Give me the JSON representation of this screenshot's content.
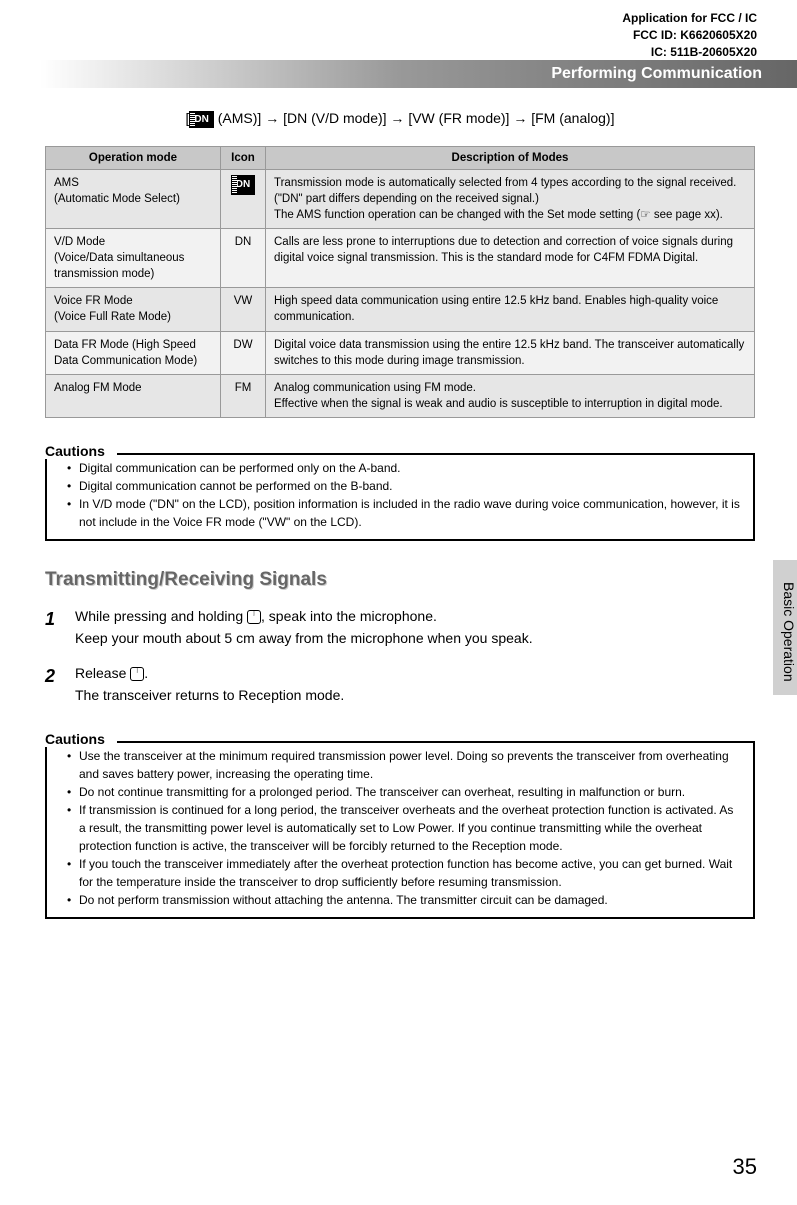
{
  "header": {
    "line1": "Application for FCC / IC",
    "line2": "FCC ID: K6620605X20",
    "line3": "IC: 511B-20605X20"
  },
  "section_title": "Performing Communication",
  "mode_chain": " (AMS)] → [DN (V/D mode)] → [VW (FR mode)] → [FM (analog)]",
  "mode_chain_prefix": "[",
  "dn_label": "DN",
  "table": {
    "headers": [
      "Operation mode",
      "Icon",
      "Description of Modes"
    ],
    "rows": [
      {
        "mode": "AMS\n(Automatic Mode Select)",
        "icon_type": "dn-box",
        "icon": "DN",
        "desc": "Transmission mode is automatically selected from 4 types according to the signal received.\n(\"DN\" part differs depending on the received signal.)\nThe AMS function operation can be changed with the Set mode setting (☞ see page xx)."
      },
      {
        "mode": "V/D Mode\n(Voice/Data simultaneous transmission mode)",
        "icon": "DN",
        "desc": "Calls are less prone to interruptions due to detection and correction of voice signals during digital voice signal transmission. This is the standard mode for C4FM FDMA Digital."
      },
      {
        "mode": "Voice FR Mode\n(Voice Full Rate Mode)",
        "icon": "VW",
        "desc": "High speed data communication using entire 12.5 kHz band. Enables high-quality voice communication."
      },
      {
        "mode": "Data FR Mode (High Speed Data Communication Mode)",
        "icon": "DW",
        "desc": "Digital voice data transmission using the entire 12.5 kHz band. The transceiver automatically switches to this mode during image transmission."
      },
      {
        "mode": "Analog FM Mode",
        "icon": "FM",
        "desc": "Analog communication using FM mode.\nEffective when the signal is weak and audio is susceptible to interruption in digital mode."
      }
    ]
  },
  "cautions1": {
    "label": "Cautions",
    "items": [
      "Digital communication can be performed only on the A-band.",
      "Digital communication cannot be performed on the B-band.",
      "In V/D mode (\"DN\" on the LCD), position information is included in the radio wave during voice communication, however, it is not include in the Voice FR mode (\"VW\" on the LCD)."
    ]
  },
  "tx_heading": "Transmitting/Receiving Signals",
  "steps": [
    {
      "num": "1",
      "line1_pre": "While pressing and holding ",
      "line1_post": ", speak into the microphone.",
      "line2": "Keep your mouth about 5 cm away from the microphone when you speak."
    },
    {
      "num": "2",
      "line1_pre": "Release ",
      "line1_post": ".",
      "line2": "The transceiver returns to Reception mode."
    }
  ],
  "cautions2": {
    "label": "Cautions",
    "items": [
      "Use the transceiver at the minimum required transmission power level. Doing so prevents the transceiver from overheating and saves battery power, increasing the operating time.",
      "Do not continue transmitting for a prolonged period. The transceiver can overheat, resulting in malfunction or burn.",
      "If transmission is continued for a long period, the transceiver overheats and the overheat protection function is activated. As a result, the transmitting power level is automatically set to Low Power. If you continue transmitting while the overheat protection function is active, the transceiver will be forcibly returned to the Reception mode.",
      "If you touch the transceiver immediately after the overheat protection function has become active, you can get burned. Wait for the temperature inside the transceiver to drop sufficiently before resuming transmission.",
      "Do not perform transmission without attaching the antenna. The transmitter circuit can be damaged."
    ]
  },
  "side_tab": "Basic Operation",
  "page_num": "35"
}
